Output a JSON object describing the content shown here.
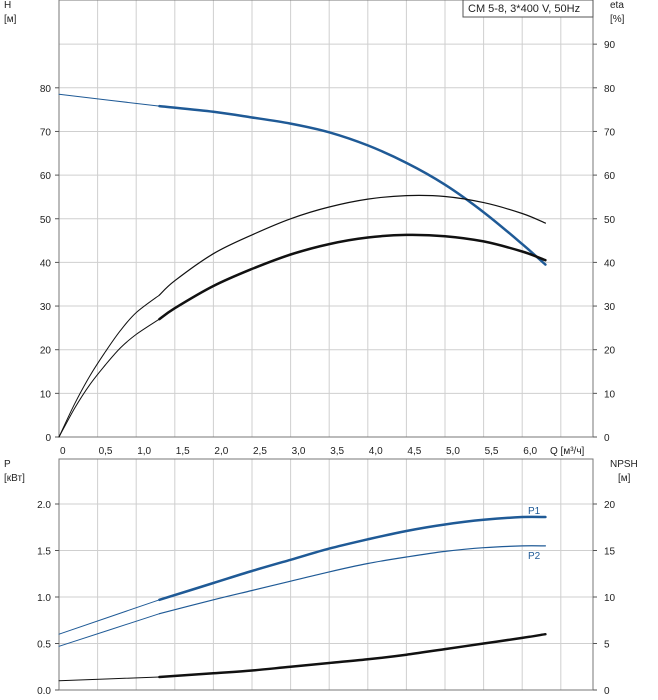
{
  "chart_data": [
    {
      "type": "line",
      "title": "CM 5-8, 3*400 V, 50Hz",
      "xlabel": "Q [м³/ч]",
      "ylabel_left": {
        "symbol": "H",
        "unit": "[м]"
      },
      "ylabel_right": {
        "symbol": "eta",
        "unit": "[%]"
      },
      "xlim": [
        0,
        6.5
      ],
      "ylim_left": [
        0,
        95
      ],
      "ylim_right": [
        0,
        95
      ],
      "xticks": [
        "0",
        "0,5",
        "1,0",
        "1,5",
        "2,0",
        "2,5",
        "3,0",
        "3,5",
        "4,0",
        "4,5",
        "5,0",
        "5,5",
        "6,0"
      ],
      "yticks_left": [
        "0",
        "10",
        "20",
        "30",
        "40",
        "50",
        "60",
        "70",
        "80"
      ],
      "yticks_right": [
        "0",
        "10",
        "20",
        "30",
        "40",
        "50",
        "60",
        "70",
        "80",
        "90"
      ],
      "grid": true,
      "series": [
        {
          "key": "H_ext",
          "color": "#1f5a96",
          "width": 1,
          "axis": "left",
          "x": [
            0,
            1.3
          ],
          "y": [
            78.5,
            75.8
          ]
        },
        {
          "key": "H",
          "color": "#1f5a96",
          "width": 2.5,
          "axis": "left",
          "x": [
            1.3,
            2.0,
            2.5,
            3.0,
            3.5,
            4.0,
            4.5,
            5.0,
            5.5,
            6.0,
            6.3
          ],
          "y": [
            75.8,
            74.5,
            73.2,
            71.8,
            69.8,
            66.8,
            62.8,
            57.8,
            51.5,
            44.2,
            39.5
          ]
        },
        {
          "key": "eta_ext",
          "color": "#111111",
          "width": 1,
          "axis": "right",
          "x": [
            0,
            0.2,
            0.4,
            0.6,
            0.8,
            1.0,
            1.3
          ],
          "y": [
            0,
            7.5,
            14.0,
            19.5,
            24.5,
            28.5,
            32.5
          ]
        },
        {
          "key": "eta",
          "color": "#111111",
          "width": 1.2,
          "axis": "right",
          "x": [
            1.3,
            1.5,
            2.0,
            2.5,
            3.0,
            3.5,
            4.0,
            4.5,
            5.0,
            5.5,
            6.0,
            6.3
          ],
          "y": [
            32.5,
            35.8,
            42.0,
            46.3,
            50.0,
            52.7,
            54.5,
            55.3,
            55.1,
            53.7,
            51.2,
            49.0
          ]
        },
        {
          "key": "eta2_ext",
          "color": "#111111",
          "width": 1,
          "axis": "right",
          "x": [
            0,
            0.2,
            0.4,
            0.6,
            0.8,
            1.0,
            1.3
          ],
          "y": [
            0,
            6.5,
            12.0,
            16.5,
            20.5,
            23.5,
            27.0
          ]
        },
        {
          "key": "eta2",
          "color": "#111111",
          "width": 2.5,
          "axis": "right",
          "x": [
            1.3,
            1.5,
            2.0,
            2.5,
            3.0,
            3.5,
            4.0,
            4.5,
            5.0,
            5.5,
            6.0,
            6.3
          ],
          "y": [
            27.0,
            29.5,
            34.6,
            38.5,
            41.8,
            44.2,
            45.7,
            46.3,
            46.0,
            44.8,
            42.5,
            40.5
          ]
        }
      ]
    },
    {
      "type": "line",
      "xlim": [
        0,
        6.5
      ],
      "ylabel_left": {
        "symbol": "P",
        "unit": "[кВт]"
      },
      "ylabel_right": {
        "symbol": "NPSH",
        "unit": "[м]"
      },
      "ylim_left": [
        0,
        2.3
      ],
      "ylim_right": [
        0,
        23
      ],
      "yticks_left": [
        "0.0",
        "0.5",
        "1.0",
        "1.5",
        "2.0"
      ],
      "yticks_right": [
        "0",
        "5",
        "10",
        "15",
        "20"
      ],
      "grid": true,
      "series": [
        {
          "key": "P1_ext",
          "color": "#1f5a96",
          "width": 1,
          "axis": "left",
          "x": [
            0,
            1.3
          ],
          "y": [
            0.6,
            0.97
          ]
        },
        {
          "key": "P1",
          "name": "P1",
          "color": "#1f5a96",
          "width": 2.5,
          "axis": "left",
          "x": [
            1.3,
            2.0,
            2.5,
            3.0,
            3.5,
            4.0,
            4.5,
            5.0,
            5.5,
            6.0,
            6.3
          ],
          "y": [
            0.97,
            1.15,
            1.28,
            1.4,
            1.52,
            1.62,
            1.71,
            1.78,
            1.83,
            1.86,
            1.86
          ]
        },
        {
          "key": "P2_ext",
          "color": "#1f5a96",
          "width": 1,
          "axis": "left",
          "x": [
            0,
            1.3
          ],
          "y": [
            0.47,
            0.82
          ]
        },
        {
          "key": "P2",
          "name": "P2",
          "color": "#1f5a96",
          "width": 1.2,
          "axis": "left",
          "x": [
            1.3,
            2.0,
            2.5,
            3.0,
            3.5,
            4.0,
            4.5,
            5.0,
            5.5,
            6.0,
            6.3
          ],
          "y": [
            0.82,
            0.97,
            1.07,
            1.17,
            1.27,
            1.36,
            1.43,
            1.49,
            1.53,
            1.55,
            1.55
          ]
        },
        {
          "key": "NPSH_ext",
          "color": "#111111",
          "width": 1,
          "axis": "right",
          "x": [
            0,
            1.3
          ],
          "y": [
            1.0,
            1.4
          ]
        },
        {
          "key": "NPSH",
          "color": "#111111",
          "width": 2.5,
          "axis": "right",
          "x": [
            1.3,
            2.0,
            2.5,
            3.0,
            3.5,
            4.0,
            4.5,
            5.0,
            5.5,
            6.0,
            6.3
          ],
          "y": [
            1.4,
            1.8,
            2.1,
            2.5,
            2.9,
            3.3,
            3.8,
            4.4,
            5.0,
            5.6,
            6.0
          ]
        }
      ]
    }
  ]
}
